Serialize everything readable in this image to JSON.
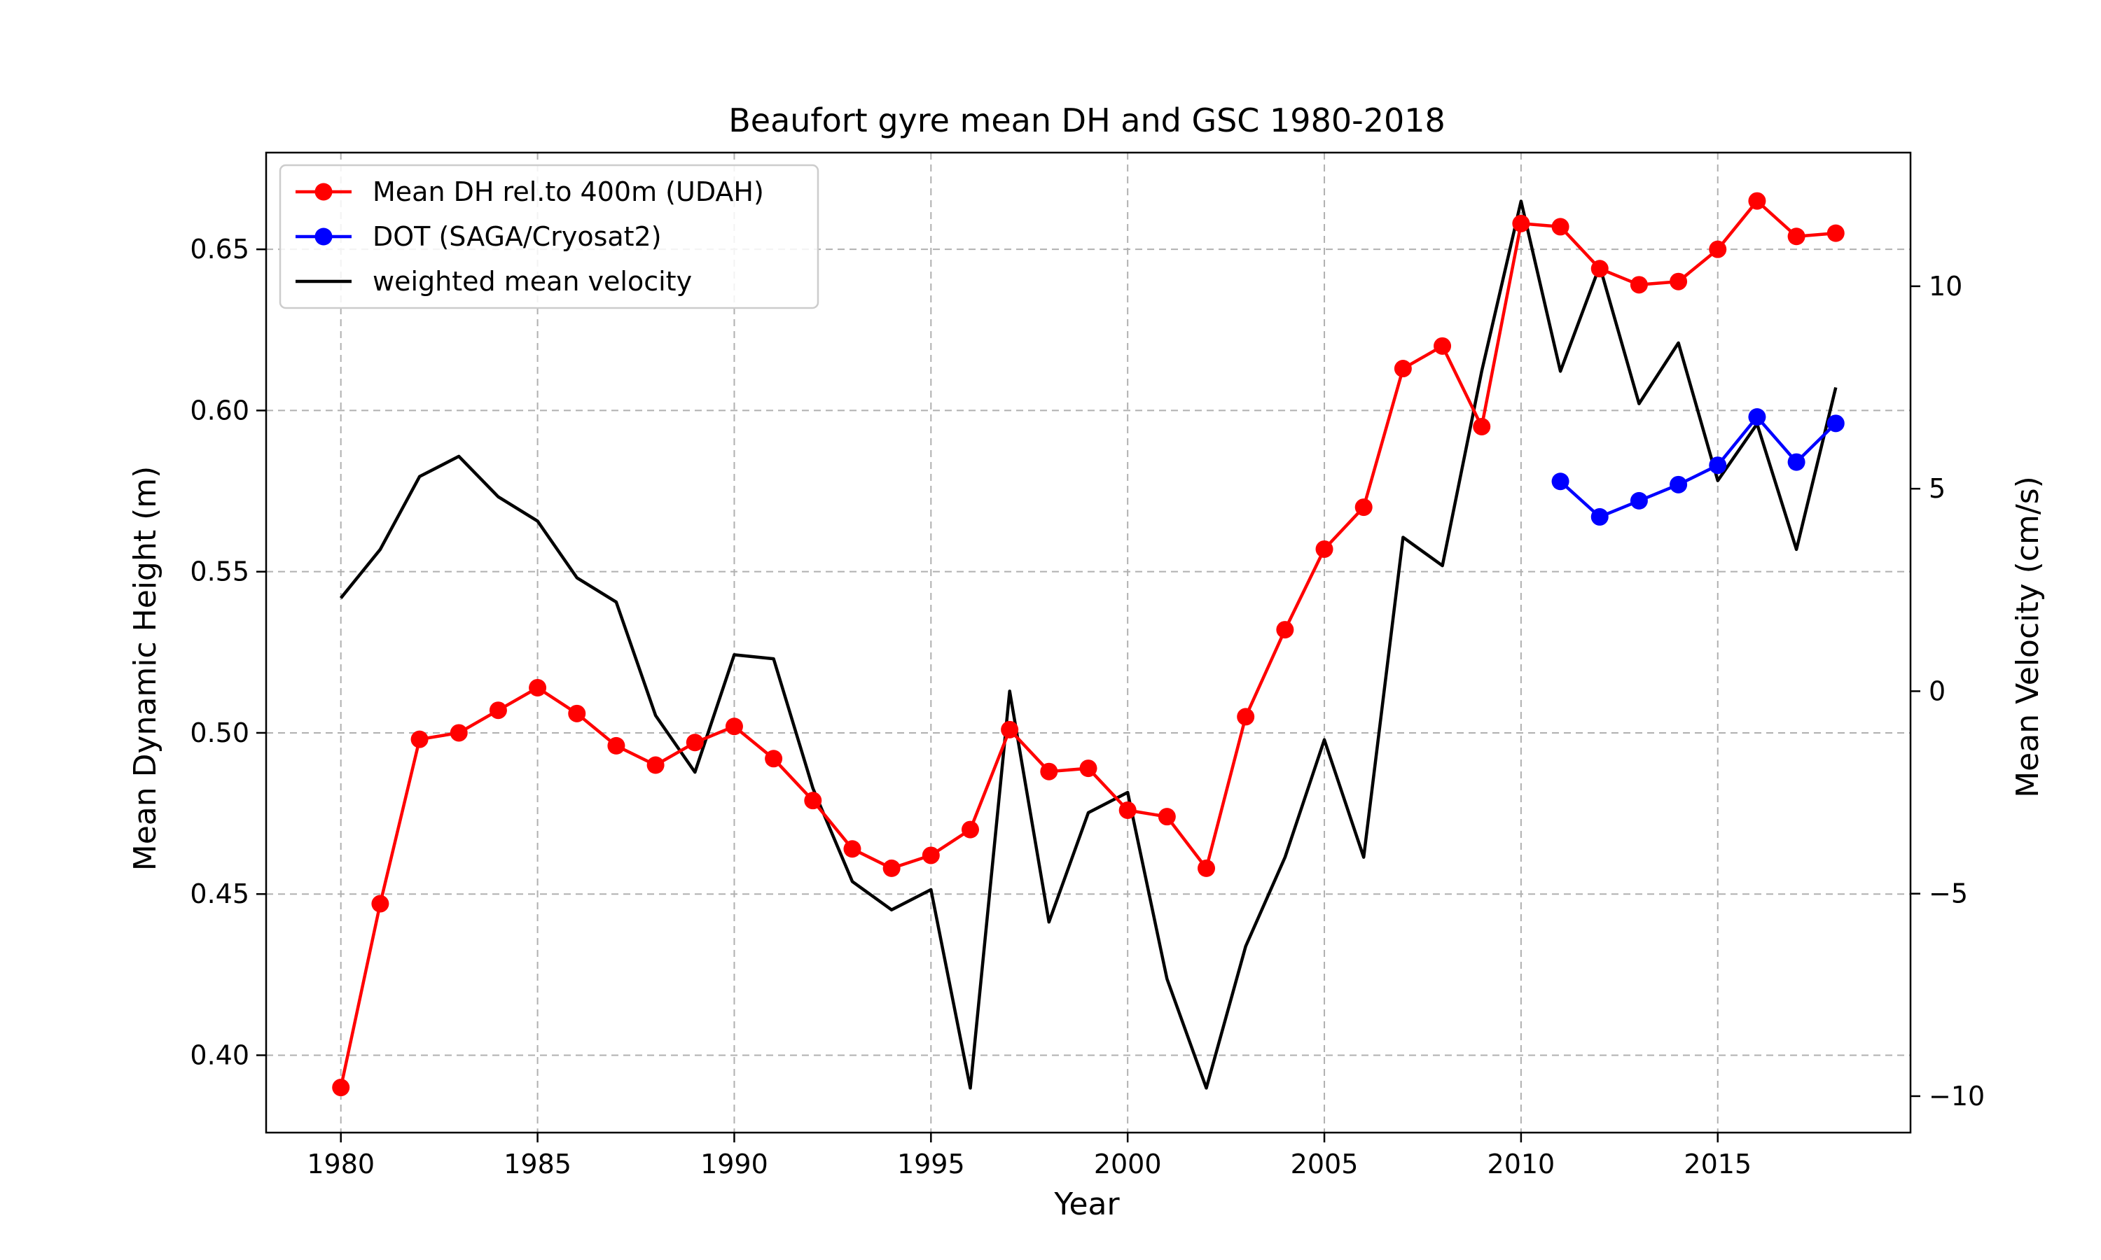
{
  "chart_data": {
    "type": "line",
    "title": "Beaufort gyre mean DH and GSC 1980-2018",
    "xlabel": "Year",
    "ylabel": "Mean Dynamic Height (m)",
    "y2label": "Mean Velocity (cm/s)",
    "xlim": [
      1978.1,
      2019.9
    ],
    "ylim": [
      0.376,
      0.68
    ],
    "y2lim": [
      -10.9,
      13.3
    ],
    "x_ticks": [
      1980,
      1985,
      1990,
      1995,
      2000,
      2005,
      2010,
      2015
    ],
    "y_ticks": [
      0.4,
      0.45,
      0.5,
      0.55,
      0.6,
      0.65
    ],
    "y2_ticks": [
      -10,
      -5,
      0,
      5,
      10
    ],
    "grid": true,
    "legend_position": "top-left",
    "series": [
      {
        "name": "Mean DH rel.to 400m (UDAH)",
        "axis": "left",
        "color": "#ff0000",
        "marker": "circle",
        "x": [
          1980,
          1981,
          1982,
          1983,
          1984,
          1985,
          1986,
          1987,
          1988,
          1989,
          1990,
          1991,
          1992,
          1993,
          1994,
          1995,
          1996,
          1997,
          1998,
          1999,
          2000,
          2001,
          2002,
          2003,
          2004,
          2005,
          2006,
          2007,
          2008,
          2009,
          2010,
          2011,
          2012,
          2013,
          2014,
          2015,
          2016,
          2017,
          2018
        ],
        "values": [
          0.39,
          0.447,
          0.498,
          0.5,
          0.507,
          0.514,
          0.506,
          0.496,
          0.49,
          0.497,
          0.502,
          0.492,
          0.479,
          0.464,
          0.458,
          0.462,
          0.47,
          0.501,
          0.488,
          0.489,
          0.476,
          0.474,
          0.458,
          0.505,
          0.532,
          0.557,
          0.57,
          0.613,
          0.62,
          0.595,
          0.658,
          0.657,
          0.644,
          0.639,
          0.64,
          0.65,
          0.665,
          0.654,
          0.655
        ]
      },
      {
        "name": "DOT (SAGA/Cryosat2)",
        "axis": "left",
        "color": "#0000ff",
        "marker": "circle",
        "x": [
          2011,
          2012,
          2013,
          2014,
          2015,
          2016,
          2017,
          2018
        ],
        "values": [
          0.578,
          0.567,
          0.572,
          0.577,
          0.583,
          0.598,
          0.584,
          0.596
        ]
      },
      {
        "name": "weighted mean velocity",
        "axis": "right",
        "color": "#000000",
        "marker": "none",
        "x": [
          1980,
          1981,
          1982,
          1983,
          1984,
          1985,
          1986,
          1987,
          1988,
          1989,
          1990,
          1991,
          1992,
          1993,
          1994,
          1995,
          1996,
          1997,
          1998,
          1999,
          2000,
          2001,
          2002,
          2003,
          2004,
          2005,
          2006,
          2007,
          2008,
          2009,
          2010,
          2011,
          2012,
          2013,
          2014,
          2015,
          2016,
          2017,
          2018
        ],
        "values": [
          2.3,
          3.5,
          5.3,
          5.8,
          4.8,
          4.2,
          2.8,
          2.2,
          -0.6,
          -2.0,
          0.9,
          0.8,
          -2.4,
          -4.7,
          -5.4,
          -4.9,
          -9.8,
          0.0,
          -5.7,
          -3.0,
          -2.5,
          -7.1,
          -9.8,
          -6.3,
          -4.1,
          -1.2,
          -4.1,
          3.8,
          3.1,
          7.9,
          12.1,
          7.9,
          10.5,
          7.1,
          8.6,
          5.2,
          6.6,
          3.5,
          7.5
        ]
      }
    ]
  }
}
